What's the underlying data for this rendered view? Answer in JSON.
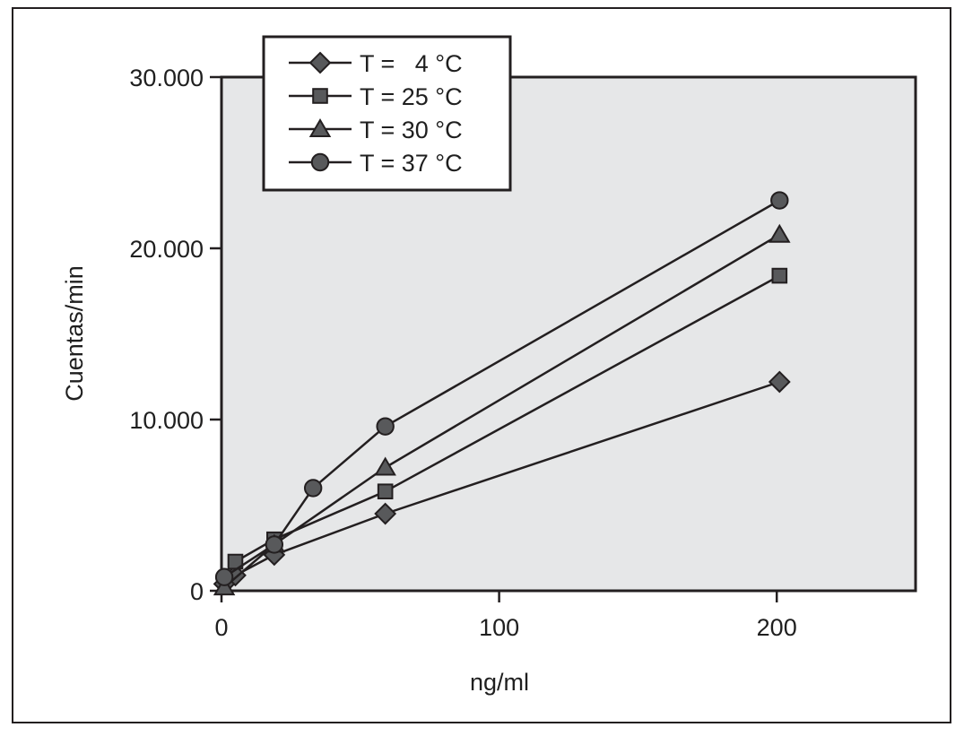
{
  "chart_data": {
    "type": "line",
    "title": "",
    "xlabel": "ng/ml",
    "ylabel": "Cuentas/min",
    "xlim": [
      0,
      250
    ],
    "ylim": [
      0,
      30000
    ],
    "x_ticks": [
      {
        "value": 0,
        "label": "0"
      },
      {
        "value": 100,
        "label": "100"
      },
      {
        "value": 200,
        "label": "200"
      }
    ],
    "y_ticks": [
      {
        "value": 0,
        "label": "0"
      },
      {
        "value": 10000,
        "label": "10.000"
      },
      {
        "value": 20000,
        "label": "20.000"
      },
      {
        "value": 30000,
        "label": "30.000"
      }
    ],
    "grid": false,
    "legend_position": "top-left",
    "plot_background": "#e6e7e8",
    "line_color": "#231f20",
    "marker_fill": "#58595b",
    "series": [
      {
        "name": "T =   4 °C",
        "marker": "diamond",
        "points": [
          [
            1,
            400
          ],
          [
            5,
            900
          ],
          [
            19,
            2100
          ],
          [
            59,
            4500
          ],
          [
            201,
            12200
          ]
        ]
      },
      {
        "name": "T = 25 °C",
        "marker": "square",
        "points": [
          [
            5,
            1700
          ],
          [
            19,
            3000
          ],
          [
            59,
            5800
          ],
          [
            201,
            18400
          ]
        ]
      },
      {
        "name": "T = 30 °C",
        "marker": "triangle",
        "points": [
          [
            1,
            200
          ],
          [
            19,
            2700
          ],
          [
            59,
            7200
          ],
          [
            201,
            20800
          ]
        ]
      },
      {
        "name": "T = 37 °C",
        "marker": "circle",
        "points": [
          [
            1,
            800
          ],
          [
            19,
            2700
          ],
          [
            33,
            6000
          ],
          [
            59,
            9600
          ],
          [
            201,
            22800
          ]
        ]
      }
    ]
  }
}
